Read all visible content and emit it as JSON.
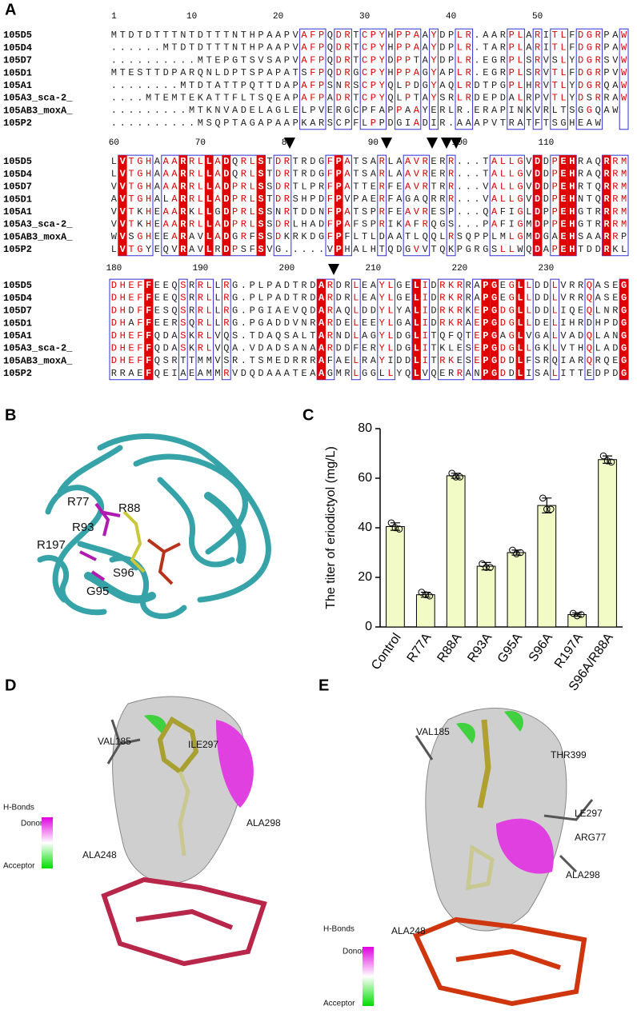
{
  "panels": {
    "a": "A",
    "b": "B",
    "c": "C",
    "d": "D",
    "e": "E"
  },
  "alignment": {
    "blocks": [
      {
        "numbers": [
          1,
          10,
          20,
          30,
          40,
          50
        ],
        "rows": [
          {
            "name": "105D5",
            "seq": "MTDTDTTTNTDTTTNTHPAAPVAFPQDRTCPYHPPAAYDPLR.AARPLARITLFDGRPAW"
          },
          {
            "name": "105D4",
            "seq": "......MTDTDTTTNTHPAAPVAFPQDRTCPYHPPAAYDPLR.TARPLARITLFDGRPAW"
          },
          {
            "name": "105D7",
            "seq": "..........MTEPGTSVSAPVAFPQDRTCPYDPPTAYDPLR.EGRPLSRVSLYDGRSVW"
          },
          {
            "name": "105D1",
            "seq": "MTESTTDPARQNLDPTSPAPATSFPQDRGCPYHPPAGYAPLR.EGRPLSRVTLFDGRPVW"
          },
          {
            "name": "105A1",
            "seq": "........MTDTATTPQTTDAPAFPSNRSCPYQLPDGYAQLRDTPGPLHRVTLYDGRQAW"
          },
          {
            "name": "105A3_sca-2_",
            "seq": "....MTEMTEKATTFLTSQEAPAFPADRTCPYQLPTAYSRLRDEPDALRPVTLYDSRRAW"
          },
          {
            "name": "105AB3_moxA_",
            "seq": ".........MTKNVADELAGLELPVERGCPFAPPAAYERLR.ERAPINKVRLTSGGQAW"
          },
          {
            "name": "105P2",
            "seq": "..........MSQPTAGAPAAPKARSCPFLPPDGIADIR.AAAPVTRATFTSGHEAW"
          }
        ]
      },
      {
        "numbers": [
          60,
          70,
          80,
          90,
          100,
          110
        ],
        "rows": [
          {
            "name": "105D5",
            "seq": "LVTGHAAARRLLADQRLSTDRTRDGFPATSARLAAVRERR...TALLGVDDPEHRAQRRM"
          },
          {
            "name": "105D4",
            "seq": "LVTGHAAARRLLADQRLSTDRTRDGFPATSARLAAVRERR...TALLGVDDPEHRAQRRM"
          },
          {
            "name": "105D7",
            "seq": "VVTGHAAARRLLADPRLSSDRTLPRFPATTERFEAVRTRR...VALLGVDDPEHRTQRRM"
          },
          {
            "name": "105D1",
            "seq": "AVTGHALARRLLADPRLSTDRSHPDFPVPAERFAGAQRRR...VALLGVDDPEHNTQRRM"
          },
          {
            "name": "105A1",
            "seq": "VVTKHEAARKLLGDPRLSSNRTDDNFPATSPRFEAVRESP...QAFIGLDPPEHGTRRRM"
          },
          {
            "name": "105A3_sca-2_",
            "seq": "VVTKHEAARRLLADPRLSSDRLHADFPAFSPRIKAFRQGS...PAFIGMDPPEHGTRRRM"
          },
          {
            "name": "105AB3_moxA_",
            "seq": "WVSGHEEARAVLADGRFSSDKRKDGFPFLTLDAATLQQLRSQPPLMLGMDGAEHSAARRP"
          },
          {
            "name": "105P2",
            "seq": "LVTGYEQVRAVLRDPSFSVG.....VPHALHTQDGVVTQKPGRGSLLWQDAPEHTDDRKL"
          }
        ]
      },
      {
        "numbers": [
          180,
          190,
          200,
          210,
          220,
          230
        ],
        "rows": [
          {
            "name": "105D5",
            "seq": "DHEFFEEQSRRLLRG.PLPADTRDARDRLEAYLGELIDRKRRAPGEGLLDDLVRRQASEG"
          },
          {
            "name": "105D4",
            "seq": "DHEFFEEQSRRLLRG.PLPADTRDARDRLEAYLGELIDRKRRAPGEGLLDDLVRRQASEG"
          },
          {
            "name": "105D7",
            "seq": "DHDFFESQSRRLLRG.PGIAEVQDARAQLDDYLYALIDRKRKEPGDGLLDDLIQEQLNRG"
          },
          {
            "name": "105D1",
            "seq": "DHAFFEERSQRLLRG.PGADDVNRARDELEEYLGALIDRKRAEPGDGLLDELIHRDHPDG"
          },
          {
            "name": "105A1",
            "seq": "DHEFFQDASKRLVQS.TDAQSALTARNDLAGYLDGLITQFQTEPGAGLVGALVADQLANG"
          },
          {
            "name": "105A3_sca-2_",
            "seq": "DHEFFQDASKRLVQA.VDADSANAARDDFERYLDGLITKLESEPGDGLLGKLVTHQLADG"
          },
          {
            "name": "105AB3_moxA_",
            "seq": "DHEFFQSRTTMMVSR.TSMEDRRRAFAELRAYIDDLITRKESEPGDDLFSRQIARQRQEG"
          },
          {
            "name": "105P2",
            "seq": "RRAEFQEIAEAMMRVDQDAAATEAAGMRLGGLLYQLVQERRANPGDDLISALITTEDPDG"
          }
        ]
      }
    ]
  },
  "structure_b": {
    "labels": [
      "R77",
      "R88",
      "R93",
      "R197",
      "S96",
      "G95"
    ]
  },
  "chart_data": {
    "type": "bar",
    "y_label": "The titer of eriodictyol (mg/L)",
    "categories": [
      "Control",
      "R77A",
      "R88A",
      "R93A",
      "G95A",
      "S96A",
      "R197A",
      "S96A/R88A"
    ],
    "values": [
      40.5,
      13,
      61,
      24.5,
      30,
      49,
      5,
      67.5
    ],
    "errors": [
      1.5,
      1,
      1,
      1.5,
      1,
      3,
      0.7,
      1.5
    ],
    "points": [
      [
        42,
        40,
        39.5
      ],
      [
        14,
        13,
        12.5
      ],
      [
        62,
        60.5,
        60.5
      ],
      [
        25.5,
        24,
        24
      ],
      [
        31,
        29.5,
        30
      ],
      [
        52,
        47.5,
        47.5
      ],
      [
        5.5,
        4.5,
        5
      ],
      [
        69,
        67,
        66.5
      ]
    ],
    "color": "#f2fbc6",
    "ylim": [
      0,
      80
    ],
    "yticks": [
      0,
      20,
      40,
      60,
      80
    ]
  },
  "docking_d": {
    "labels": [
      "VAL185",
      "ILE297",
      "ALA298",
      "ALA248"
    ],
    "legend_title": "H-Bonds",
    "legend_top": "Donor",
    "legend_bottom": "Acceptor"
  },
  "docking_e": {
    "labels": [
      "VAL185",
      "THR399",
      "LE297",
      "ARG77",
      "ALA298",
      "ALA248"
    ],
    "legend_title": "H-Bonds",
    "legend_top": "Donor",
    "legend_bottom": "Acceptor"
  }
}
